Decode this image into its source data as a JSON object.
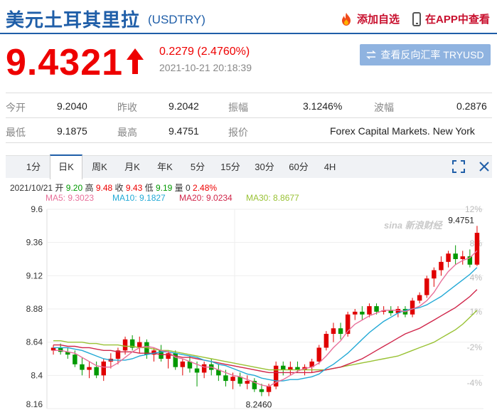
{
  "header": {
    "title": "美元土耳其里拉",
    "code": "(USDTRY)",
    "add_watch": "添加自选",
    "app_view": "在APP中查看"
  },
  "quote": {
    "price": "9.4321",
    "change": "0.2279 (2.4760%)",
    "timestamp": "2021-10-21 20:18:39",
    "reverse_button": "查看反向汇率 TRYUSD"
  },
  "stats": {
    "row1": [
      {
        "label": "今开",
        "value": "9.2040"
      },
      {
        "label": "昨收",
        "value": "9.2042"
      },
      {
        "label": "振幅",
        "value": "3.1246%"
      },
      {
        "label": "波幅",
        "value": "0.2876"
      }
    ],
    "row2": [
      {
        "label": "最低",
        "value": "9.1875"
      },
      {
        "label": "最高",
        "value": "9.4751"
      },
      {
        "label": "报价",
        "value": "Forex Capital Markets. New York"
      }
    ]
  },
  "tabs": [
    "1分",
    "日K",
    "周K",
    "月K",
    "年K",
    "5分",
    "15分",
    "30分",
    "60分",
    "4H"
  ],
  "active_tab": "日K",
  "ohlc": {
    "date": "2021/10/21",
    "open_label": "开",
    "open": "9.20",
    "high_label": "高",
    "high": "9.48",
    "close_label": "收",
    "close": "9.43",
    "low_label": "低",
    "low": "9.19",
    "vol_label": "量",
    "vol": "0",
    "pct": "2.48%"
  },
  "ma_legend": {
    "ma5": "MA5: 9.3023",
    "ma10": "MA10: 9.1827",
    "ma20": "MA20: 9.0234",
    "ma30": "MA30: 8.8677"
  },
  "colors": {
    "brand": "#1f5ea8",
    "up": "#e00000",
    "down": "#009900",
    "ma5": "#e8709a",
    "ma10": "#22a9d6",
    "ma20": "#d0264a",
    "ma30": "#99c234"
  },
  "watermark": "sina 新浪财经",
  "chart_data": {
    "type": "candlestick",
    "y_ticks": [
      "9.6",
      "9.36",
      "9.12",
      "8.88",
      "8.64",
      "8.4",
      "8.16"
    ],
    "y_range": [
      8.16,
      9.6
    ],
    "pct_ticks": [
      "12%",
      "8%",
      "4%",
      "1%",
      "-2%",
      "-4%"
    ],
    "max_label": "9.4751",
    "min_label": "8.2460",
    "candles": [
      [
        8.58,
        8.62,
        8.55,
        8.6
      ],
      [
        8.6,
        8.63,
        8.55,
        8.57
      ],
      [
        8.57,
        8.6,
        8.52,
        8.55
      ],
      [
        8.55,
        8.58,
        8.46,
        8.48
      ],
      [
        8.48,
        8.53,
        8.4,
        8.44
      ],
      [
        8.44,
        8.5,
        8.38,
        8.46
      ],
      [
        8.46,
        8.5,
        8.38,
        8.4
      ],
      [
        8.4,
        8.52,
        8.36,
        8.5
      ],
      [
        8.5,
        8.56,
        8.45,
        8.52
      ],
      [
        8.52,
        8.6,
        8.48,
        8.58
      ],
      [
        8.58,
        8.68,
        8.55,
        8.66
      ],
      [
        8.66,
        8.69,
        8.58,
        8.6
      ],
      [
        8.6,
        8.68,
        8.56,
        8.64
      ],
      [
        8.64,
        8.66,
        8.52,
        8.55
      ],
      [
        8.55,
        8.6,
        8.5,
        8.58
      ],
      [
        8.58,
        8.62,
        8.5,
        8.52
      ],
      [
        8.52,
        8.58,
        8.45,
        8.56
      ],
      [
        8.56,
        8.58,
        8.44,
        8.46
      ],
      [
        8.46,
        8.52,
        8.4,
        8.5
      ],
      [
        8.5,
        8.54,
        8.42,
        8.45
      ],
      [
        8.45,
        8.5,
        8.32,
        8.42
      ],
      [
        8.42,
        8.5,
        8.38,
        8.48
      ],
      [
        8.48,
        8.52,
        8.4,
        8.44
      ],
      [
        8.44,
        8.48,
        8.36,
        8.4
      ],
      [
        8.4,
        8.44,
        8.32,
        8.36
      ],
      [
        8.36,
        8.42,
        8.3,
        8.39
      ],
      [
        8.39,
        8.42,
        8.32,
        8.34
      ],
      [
        8.34,
        8.4,
        8.3,
        8.36
      ],
      [
        8.36,
        8.38,
        8.28,
        8.3
      ],
      [
        8.3,
        8.34,
        8.25,
        8.28
      ],
      [
        8.28,
        8.34,
        8.25,
        8.32
      ],
      [
        8.32,
        8.5,
        8.3,
        8.47
      ],
      [
        8.47,
        8.5,
        8.4,
        8.44
      ],
      [
        8.44,
        8.5,
        8.4,
        8.46
      ],
      [
        8.46,
        8.5,
        8.42,
        8.44
      ],
      [
        8.44,
        8.48,
        8.4,
        8.46
      ],
      [
        8.46,
        8.52,
        8.42,
        8.5
      ],
      [
        8.5,
        8.62,
        8.48,
        8.6
      ],
      [
        8.6,
        8.72,
        8.58,
        8.7
      ],
      [
        8.7,
        8.78,
        8.64,
        8.74
      ],
      [
        8.74,
        8.78,
        8.66,
        8.7
      ],
      [
        8.7,
        8.86,
        8.68,
        8.84
      ],
      [
        8.84,
        8.88,
        8.8,
        8.86
      ],
      [
        8.86,
        8.9,
        8.8,
        8.84
      ],
      [
        8.84,
        8.92,
        8.82,
        8.9
      ],
      [
        8.9,
        8.92,
        8.84,
        8.86
      ],
      [
        8.86,
        8.9,
        8.84,
        8.87
      ],
      [
        8.87,
        8.9,
        8.83,
        8.85
      ],
      [
        8.85,
        8.9,
        8.82,
        8.88
      ],
      [
        8.88,
        8.9,
        8.82,
        8.84
      ],
      [
        8.84,
        8.96,
        8.82,
        8.94
      ],
      [
        8.94,
        9.0,
        8.92,
        8.98
      ],
      [
        8.98,
        9.12,
        8.96,
        9.1
      ],
      [
        9.1,
        9.18,
        9.04,
        9.16
      ],
      [
        9.16,
        9.26,
        9.12,
        9.22
      ],
      [
        9.22,
        9.3,
        9.18,
        9.28
      ],
      [
        9.28,
        9.34,
        9.2,
        9.24
      ],
      [
        9.24,
        9.3,
        9.2,
        9.26
      ],
      [
        9.26,
        9.31,
        9.18,
        9.2
      ],
      [
        9.2,
        9.48,
        9.19,
        9.43
      ]
    ],
    "ma5": [
      8.58,
      8.58,
      8.57,
      8.56,
      8.53,
      8.5,
      8.47,
      8.46,
      8.46,
      8.49,
      8.53,
      8.57,
      8.6,
      8.61,
      8.6,
      8.58,
      8.57,
      8.53,
      8.52,
      8.5,
      8.48,
      8.46,
      8.46,
      8.44,
      8.42,
      8.4,
      8.39,
      8.37,
      8.35,
      8.33,
      8.32,
      8.35,
      8.37,
      8.4,
      8.43,
      8.45,
      8.46,
      8.49,
      8.54,
      8.6,
      8.65,
      8.72,
      8.77,
      8.8,
      8.83,
      8.85,
      8.87,
      8.87,
      8.87,
      8.86,
      8.88,
      8.9,
      8.94,
      9.0,
      9.08,
      9.15,
      9.2,
      9.23,
      9.25,
      9.3
    ],
    "ma10": [
      8.6,
      8.6,
      8.6,
      8.59,
      8.58,
      8.56,
      8.54,
      8.52,
      8.51,
      8.51,
      8.51,
      8.52,
      8.54,
      8.55,
      8.56,
      8.57,
      8.57,
      8.56,
      8.55,
      8.54,
      8.53,
      8.51,
      8.5,
      8.48,
      8.47,
      8.45,
      8.43,
      8.41,
      8.4,
      8.38,
      8.37,
      8.36,
      8.36,
      8.37,
      8.37,
      8.38,
      8.39,
      8.41,
      8.45,
      8.48,
      8.52,
      8.56,
      8.61,
      8.66,
      8.71,
      8.75,
      8.79,
      8.82,
      8.85,
      8.87,
      8.88,
      8.89,
      8.91,
      8.94,
      8.97,
      9.01,
      9.05,
      9.09,
      9.13,
      9.18
    ],
    "ma20": [
      8.62,
      8.62,
      8.61,
      8.61,
      8.6,
      8.6,
      8.59,
      8.58,
      8.58,
      8.57,
      8.57,
      8.57,
      8.56,
      8.56,
      8.56,
      8.55,
      8.55,
      8.54,
      8.53,
      8.53,
      8.52,
      8.51,
      8.5,
      8.49,
      8.48,
      8.47,
      8.46,
      8.45,
      8.44,
      8.43,
      8.42,
      8.42,
      8.42,
      8.42,
      8.42,
      8.42,
      8.42,
      8.43,
      8.44,
      8.45,
      8.46,
      8.48,
      8.5,
      8.52,
      8.55,
      8.58,
      8.61,
      8.64,
      8.67,
      8.7,
      8.72,
      8.74,
      8.77,
      8.8,
      8.83,
      8.86,
      8.89,
      8.93,
      8.97,
      9.02
    ],
    "ma30": [
      8.65,
      8.65,
      8.64,
      8.64,
      8.64,
      8.63,
      8.63,
      8.62,
      8.62,
      8.62,
      8.61,
      8.61,
      8.6,
      8.6,
      8.59,
      8.58,
      8.58,
      8.57,
      8.56,
      8.55,
      8.54,
      8.53,
      8.52,
      8.51,
      8.5,
      8.49,
      8.48,
      8.47,
      8.46,
      8.45,
      8.44,
      8.44,
      8.44,
      8.44,
      8.44,
      8.44,
      8.44,
      8.44,
      8.44,
      8.45,
      8.46,
      8.47,
      8.48,
      8.49,
      8.5,
      8.51,
      8.52,
      8.53,
      8.54,
      8.56,
      8.58,
      8.6,
      8.62,
      8.64,
      8.67,
      8.7,
      8.73,
      8.77,
      8.82,
      8.87
    ]
  }
}
